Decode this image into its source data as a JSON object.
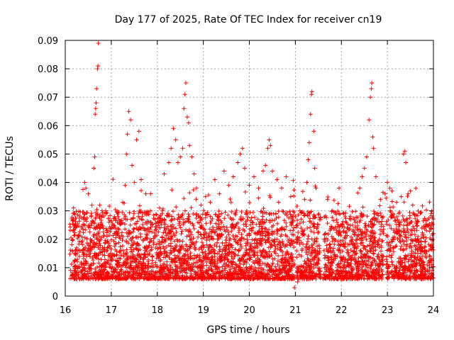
{
  "chart_data": {
    "type": "scatter",
    "title": "Day 177 of 2025, Rate Of TEC Index for receiver cn19",
    "xlabel": "GPS time / hours",
    "ylabel": "ROTI / TECUs",
    "xlim": [
      16,
      24
    ],
    "ylim": [
      0,
      0.09
    ],
    "xticks": [
      "16",
      "17",
      "18",
      "19",
      "20",
      "21",
      "22",
      "23",
      "24"
    ],
    "yticks": [
      "0",
      "0.01",
      "0.02",
      "0.03",
      "0.04",
      "0.05",
      "0.06",
      "0.07",
      "0.08",
      "0.09"
    ],
    "grid": true,
    "marker": "+",
    "color": "#ff0000",
    "series": [
      {
        "name": "ROTI",
        "points": [
          [
            16.18,
            0.031
          ],
          [
            16.22,
            0.024
          ],
          [
            16.28,
            0.021
          ],
          [
            16.35,
            0.019
          ],
          [
            16.42,
            0.04
          ],
          [
            16.45,
            0.038
          ],
          [
            16.5,
            0.036
          ],
          [
            16.58,
            0.032
          ],
          [
            16.62,
            0.045
          ],
          [
            16.64,
            0.049
          ],
          [
            16.65,
            0.064
          ],
          [
            16.66,
            0.066
          ],
          [
            16.67,
            0.068
          ],
          [
            16.68,
            0.073
          ],
          [
            16.7,
            0.08
          ],
          [
            16.71,
            0.081
          ],
          [
            16.72,
            0.089
          ],
          [
            16.75,
            0.032
          ],
          [
            16.8,
            0.03
          ],
          [
            16.88,
            0.029
          ],
          [
            16.95,
            0.026
          ],
          [
            17.05,
            0.025
          ],
          [
            17.15,
            0.028
          ],
          [
            17.25,
            0.033
          ],
          [
            17.3,
            0.039
          ],
          [
            17.33,
            0.05
          ],
          [
            17.35,
            0.057
          ],
          [
            17.38,
            0.065
          ],
          [
            17.42,
            0.062
          ],
          [
            17.45,
            0.046
          ],
          [
            17.5,
            0.04
          ],
          [
            17.55,
            0.055
          ],
          [
            17.6,
            0.058
          ],
          [
            17.65,
            0.041
          ],
          [
            17.75,
            0.036
          ],
          [
            17.85,
            0.03
          ],
          [
            17.95,
            0.027
          ],
          [
            18.05,
            0.031
          ],
          [
            18.15,
            0.043
          ],
          [
            18.25,
            0.047
          ],
          [
            18.3,
            0.052
          ],
          [
            18.35,
            0.059
          ],
          [
            18.4,
            0.055
          ],
          [
            18.45,
            0.047
          ],
          [
            18.5,
            0.049
          ],
          [
            18.55,
            0.052
          ],
          [
            18.58,
            0.066
          ],
          [
            18.6,
            0.071
          ],
          [
            18.62,
            0.075
          ],
          [
            18.65,
            0.063
          ],
          [
            18.68,
            0.061
          ],
          [
            18.7,
            0.053
          ],
          [
            18.75,
            0.049
          ],
          [
            18.8,
            0.043
          ],
          [
            18.85,
            0.038
          ],
          [
            18.95,
            0.032
          ],
          [
            19.05,
            0.035
          ],
          [
            19.15,
            0.033
          ],
          [
            19.25,
            0.041
          ],
          [
            19.35,
            0.036
          ],
          [
            19.45,
            0.044
          ],
          [
            19.55,
            0.039
          ],
          [
            19.65,
            0.042
          ],
          [
            19.75,
            0.047
          ],
          [
            19.8,
            0.05
          ],
          [
            19.85,
            0.052
          ],
          [
            19.9,
            0.045
          ],
          [
            20.0,
            0.039
          ],
          [
            20.1,
            0.042
          ],
          [
            20.2,
            0.038
          ],
          [
            20.3,
            0.044
          ],
          [
            20.35,
            0.046
          ],
          [
            20.4,
            0.052
          ],
          [
            20.43,
            0.055
          ],
          [
            20.46,
            0.053
          ],
          [
            20.5,
            0.044
          ],
          [
            20.6,
            0.041
          ],
          [
            20.7,
            0.038
          ],
          [
            20.8,
            0.042
          ],
          [
            20.9,
            0.035
          ],
          [
            21.0,
            0.028
          ],
          [
            21.1,
            0.03
          ],
          [
            21.2,
            0.034
          ],
          [
            21.25,
            0.04
          ],
          [
            21.28,
            0.048
          ],
          [
            21.3,
            0.054
          ],
          [
            21.33,
            0.064
          ],
          [
            21.35,
            0.071
          ],
          [
            21.36,
            0.072
          ],
          [
            21.4,
            0.058
          ],
          [
            21.42,
            0.045
          ],
          [
            21.45,
            0.038
          ],
          [
            21.55,
            0.027
          ],
          [
            21.7,
            0.034
          ],
          [
            21.8,
            0.03
          ],
          [
            21.95,
            0.038
          ],
          [
            22.05,
            0.029
          ],
          [
            22.2,
            0.027
          ],
          [
            22.3,
            0.026
          ],
          [
            22.4,
            0.038
          ],
          [
            22.45,
            0.042
          ],
          [
            22.5,
            0.045
          ],
          [
            22.55,
            0.049
          ],
          [
            22.6,
            0.062
          ],
          [
            22.63,
            0.07
          ],
          [
            22.65,
            0.073
          ],
          [
            22.66,
            0.075
          ],
          [
            22.68,
            0.056
          ],
          [
            22.7,
            0.052
          ],
          [
            22.75,
            0.042
          ],
          [
            22.85,
            0.034
          ],
          [
            22.95,
            0.036
          ],
          [
            23.0,
            0.04
          ],
          [
            23.05,
            0.038
          ],
          [
            23.1,
            0.037
          ],
          [
            23.2,
            0.033
          ],
          [
            23.3,
            0.035
          ],
          [
            23.35,
            0.05
          ],
          [
            23.38,
            0.051
          ],
          [
            23.4,
            0.047
          ],
          [
            23.45,
            0.036
          ],
          [
            23.5,
            0.037
          ],
          [
            23.55,
            0.032
          ],
          [
            23.65,
            0.026
          ],
          [
            23.75,
            0.024
          ],
          [
            23.85,
            0.023
          ],
          [
            23.95,
            0.024
          ],
          [
            24.0,
            0.022
          ],
          [
            20.98,
            0.003
          ],
          [
            21.05,
            0.005
          ],
          [
            21.6,
            0.006
          ],
          [
            17.1,
            0.006
          ]
        ]
      }
    ]
  }
}
